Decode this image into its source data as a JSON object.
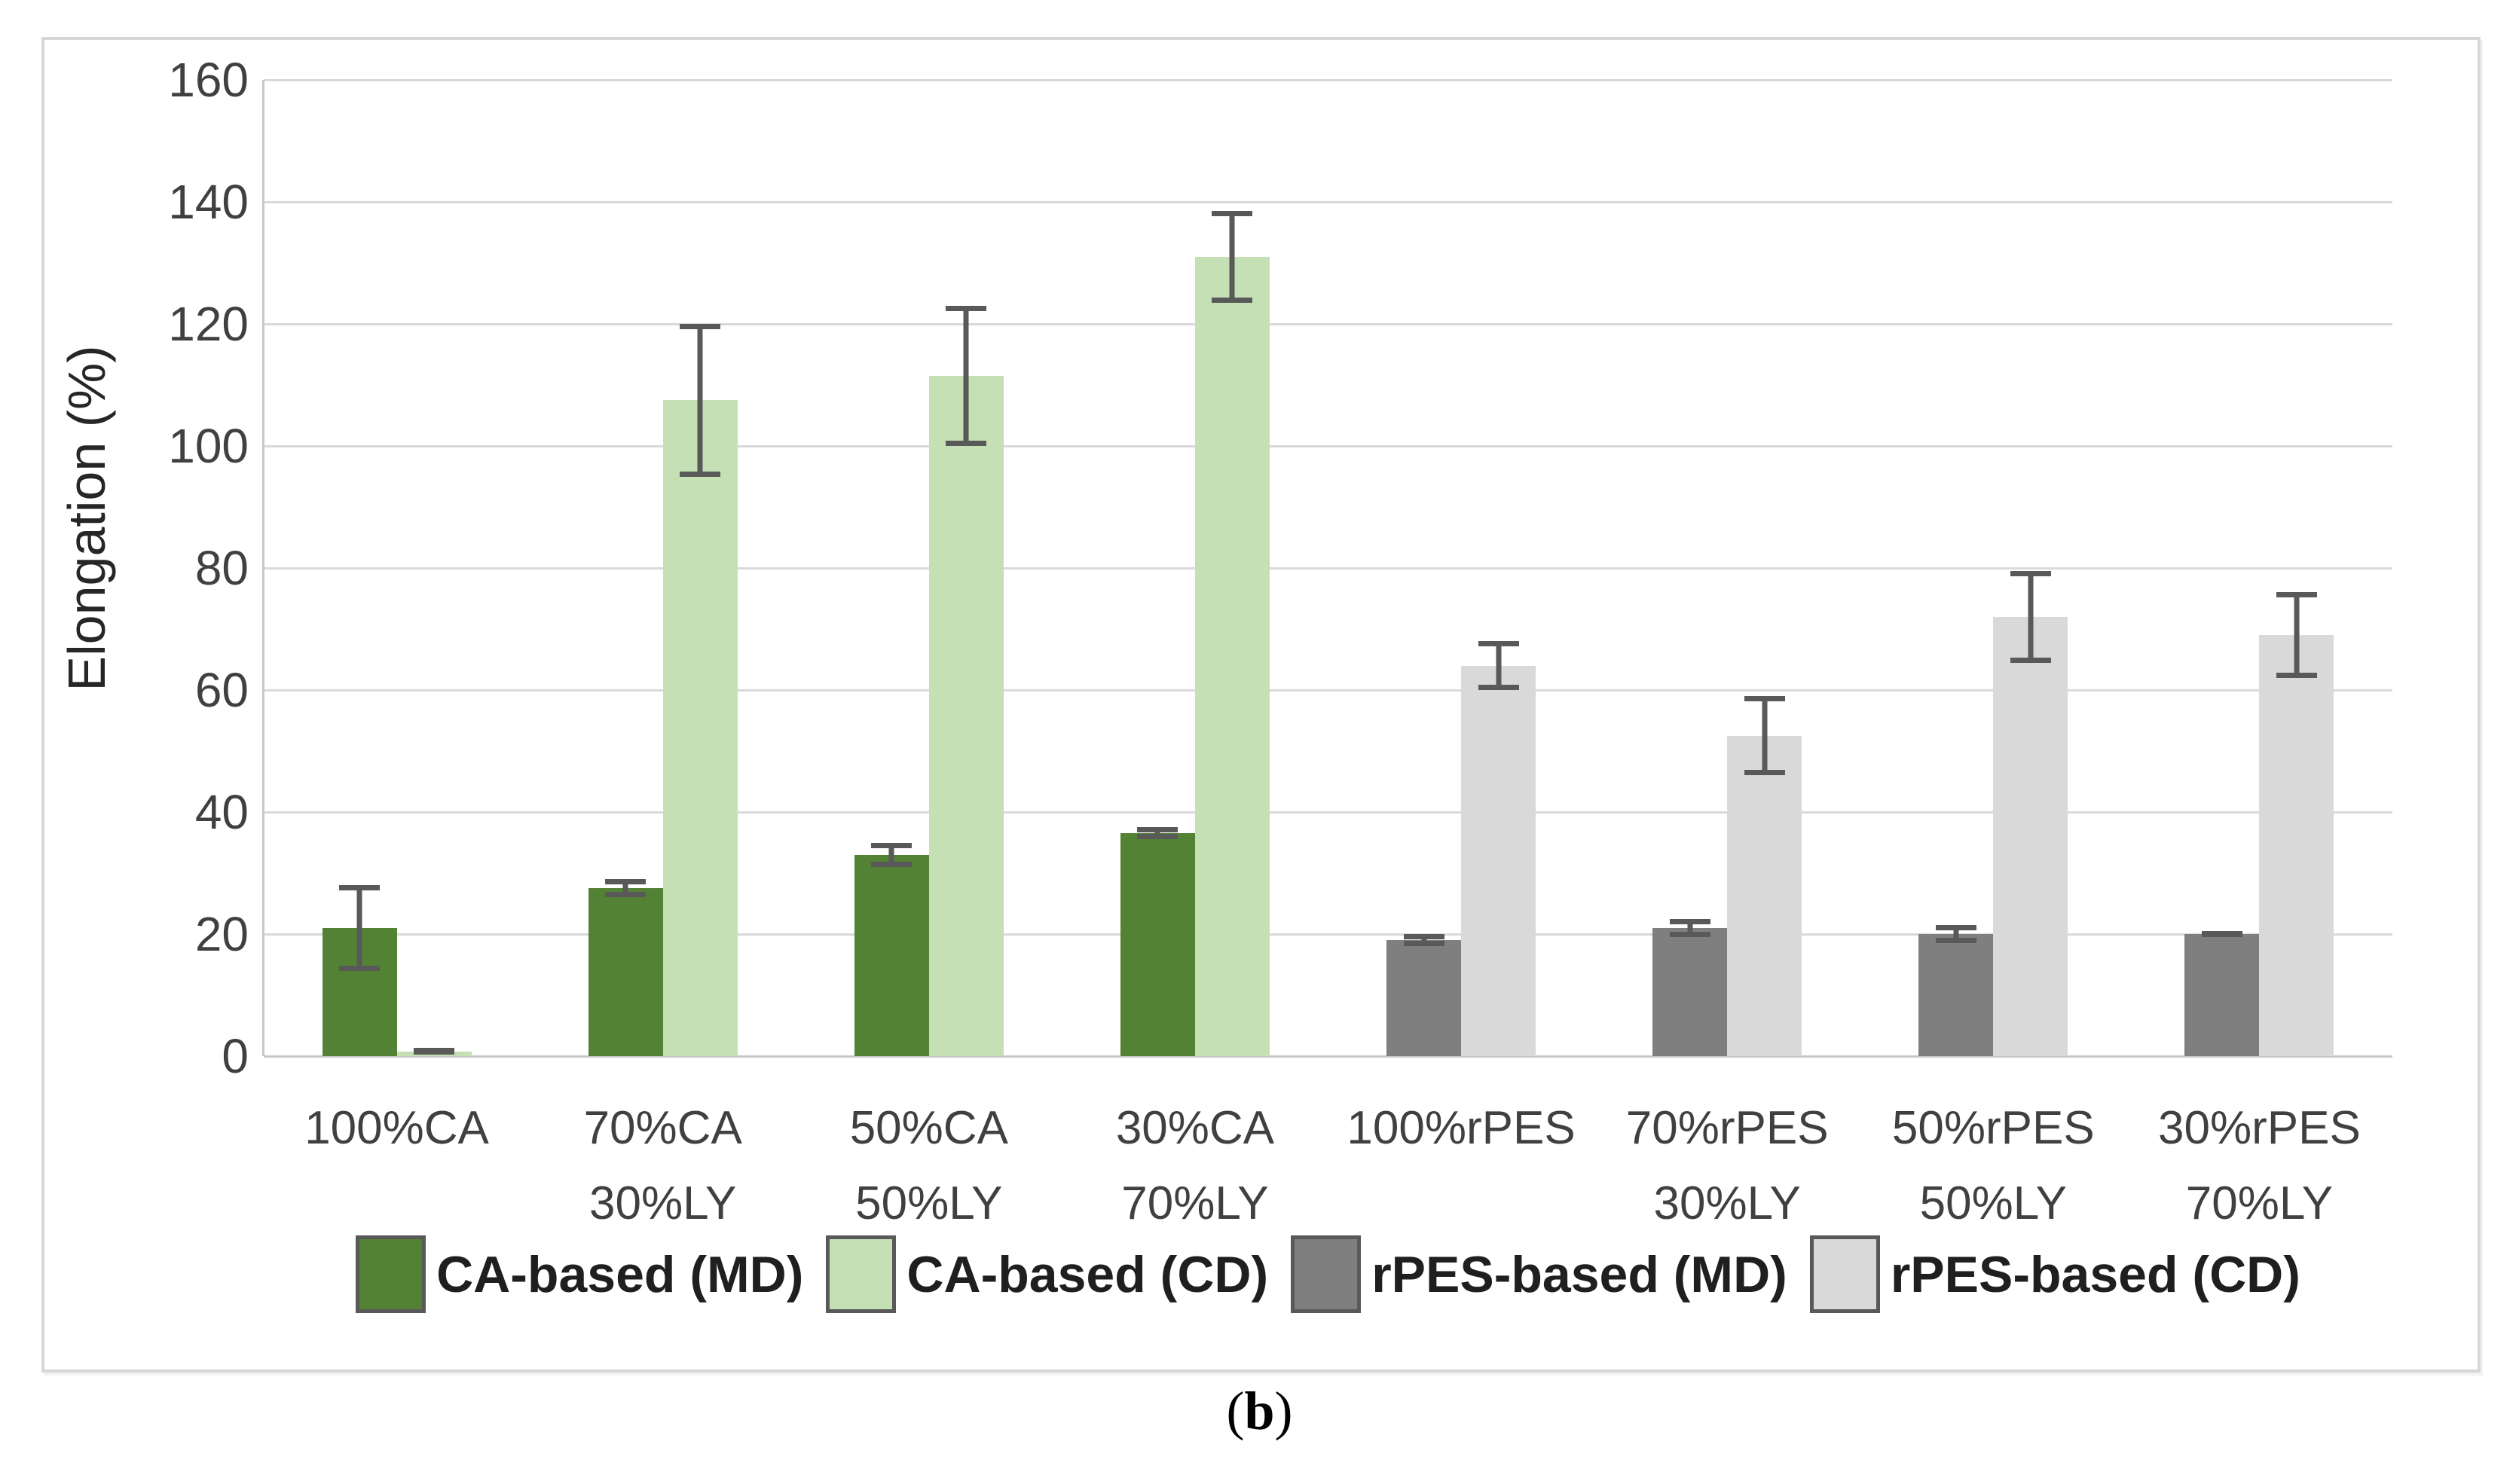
{
  "caption": {
    "open": "(",
    "letter": "b",
    "close": ")"
  },
  "chart_data": {
    "type": "bar",
    "title": "",
    "xlabel": "",
    "ylabel": "Elongation (%)",
    "ylim": [
      0,
      160
    ],
    "yticks": [
      0,
      20,
      40,
      60,
      80,
      100,
      120,
      140,
      160
    ],
    "grid": "horizontal",
    "legend_position": "bottom",
    "categories": [
      {
        "line1": "100%CA",
        "line2": ""
      },
      {
        "line1": "70%CA",
        "line2": "30%LY"
      },
      {
        "line1": "50%CA",
        "line2": "50%LY"
      },
      {
        "line1": "30%CA",
        "line2": "70%LY"
      },
      {
        "line1": "100%rPES",
        "line2": ""
      },
      {
        "line1": "70%rPES",
        "line2": "30%LY"
      },
      {
        "line1": "50%rPES",
        "line2": "50%LY"
      },
      {
        "line1": "30%rPES",
        "line2": "70%LY"
      }
    ],
    "series": [
      {
        "name": "CA-based (MD)",
        "color": "#548235",
        "values": [
          21,
          27.5,
          33,
          36.5,
          null,
          null,
          null,
          null
        ],
        "errors": [
          7,
          1.5,
          2,
          1,
          null,
          null,
          null,
          null
        ]
      },
      {
        "name": "CA-based (CD)",
        "color": "#C5E0B4",
        "values": [
          0.8,
          107.5,
          111.5,
          131,
          null,
          null,
          null,
          null
        ],
        "errors": [
          0.5,
          12.5,
          11.5,
          7.5,
          null,
          null,
          null,
          null
        ]
      },
      {
        "name": "rPES-based (MD)",
        "color": "#7F7F7F",
        "values": [
          null,
          null,
          null,
          null,
          19,
          21,
          20,
          20
        ],
        "errors": [
          null,
          null,
          null,
          null,
          1,
          1.5,
          1.5,
          0.5
        ]
      },
      {
        "name": "rPES-based (CD)",
        "color": "#D9D9D9",
        "values": [
          null,
          null,
          null,
          null,
          64,
          52.5,
          72,
          69
        ],
        "errors": [
          null,
          null,
          null,
          null,
          4,
          6.5,
          7.5,
          7
        ]
      }
    ],
    "colors": {
      "error_bar": "#595959",
      "gridline": "#D9D9D9",
      "axis_line": "#C8C8C8",
      "tick_text": "#404040",
      "category_text": "#404040",
      "legend_text": "#1F1F1F",
      "legend_swatch_border": "#595959",
      "frame_border": "#D6D6D6",
      "background": "#FFFFFF"
    }
  }
}
